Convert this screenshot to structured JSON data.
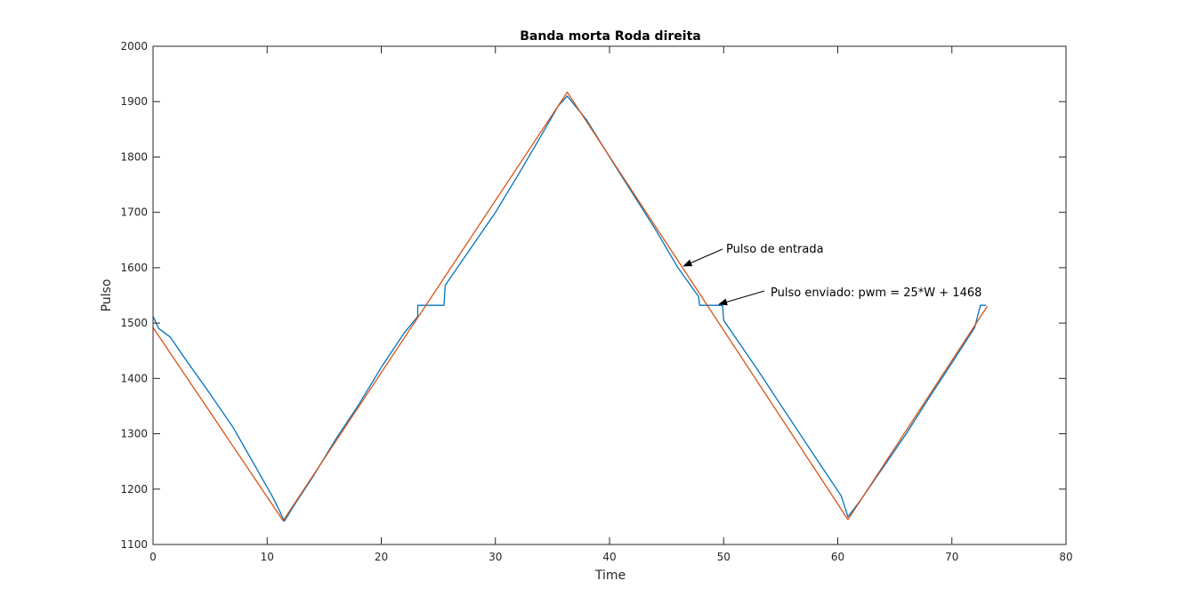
{
  "chart_data": {
    "type": "line",
    "title": "Banda morta Roda direita",
    "xlabel": "Time",
    "ylabel": "Pulso",
    "xlim": [
      0,
      80
    ],
    "ylim": [
      1100,
      2000
    ],
    "xticks": [
      0,
      10,
      20,
      30,
      40,
      50,
      60,
      70,
      80
    ],
    "yticks": [
      1100,
      1200,
      1300,
      1400,
      1500,
      1600,
      1700,
      1800,
      1900,
      2000
    ],
    "grid": false,
    "series": [
      {
        "color": "#D95319",
        "points": [
          [
            0,
            1492
          ],
          [
            11.4,
            1143
          ],
          [
            36.3,
            1917
          ],
          [
            60.9,
            1145
          ],
          [
            73.1,
            1530
          ]
        ]
      },
      {
        "color": "#0072BD",
        "points": [
          [
            0,
            1512
          ],
          [
            0.5,
            1490
          ],
          [
            1.5,
            1475
          ],
          [
            3,
            1430
          ],
          [
            5,
            1372
          ],
          [
            7,
            1312
          ],
          [
            9,
            1240
          ],
          [
            10.5,
            1185
          ],
          [
            11.1,
            1160
          ],
          [
            11.5,
            1142
          ],
          [
            12.5,
            1175
          ],
          [
            14,
            1222
          ],
          [
            16,
            1290
          ],
          [
            18,
            1352
          ],
          [
            20,
            1420
          ],
          [
            22,
            1482
          ],
          [
            23.2,
            1512
          ],
          [
            23.2,
            1532
          ],
          [
            25.5,
            1532
          ],
          [
            25.6,
            1568
          ],
          [
            28,
            1640
          ],
          [
            30,
            1700
          ],
          [
            32,
            1768
          ],
          [
            34,
            1838
          ],
          [
            35.5,
            1892
          ],
          [
            36.3,
            1910
          ],
          [
            38,
            1867
          ],
          [
            40,
            1800
          ],
          [
            42,
            1735
          ],
          [
            44,
            1670
          ],
          [
            46,
            1600
          ],
          [
            47.8,
            1548
          ],
          [
            47.9,
            1532
          ],
          [
            49.9,
            1532
          ],
          [
            50,
            1505
          ],
          [
            51,
            1475
          ],
          [
            53,
            1415
          ],
          [
            55,
            1352
          ],
          [
            57,
            1290
          ],
          [
            59,
            1228
          ],
          [
            60.3,
            1188
          ],
          [
            60.9,
            1150
          ],
          [
            62,
            1180
          ],
          [
            64,
            1240
          ],
          [
            66,
            1300
          ],
          [
            68,
            1365
          ],
          [
            70,
            1428
          ],
          [
            72,
            1492
          ],
          [
            72.5,
            1532
          ],
          [
            73,
            1532
          ]
        ]
      }
    ],
    "annotations": [
      {
        "text": "Pulso de entrada",
        "arrow_to": [
          46.5,
          1603
        ]
      },
      {
        "text": "Pulso enviado: pwm = 25*W + 1468",
        "arrow_to": [
          49.6,
          1534
        ]
      }
    ]
  }
}
